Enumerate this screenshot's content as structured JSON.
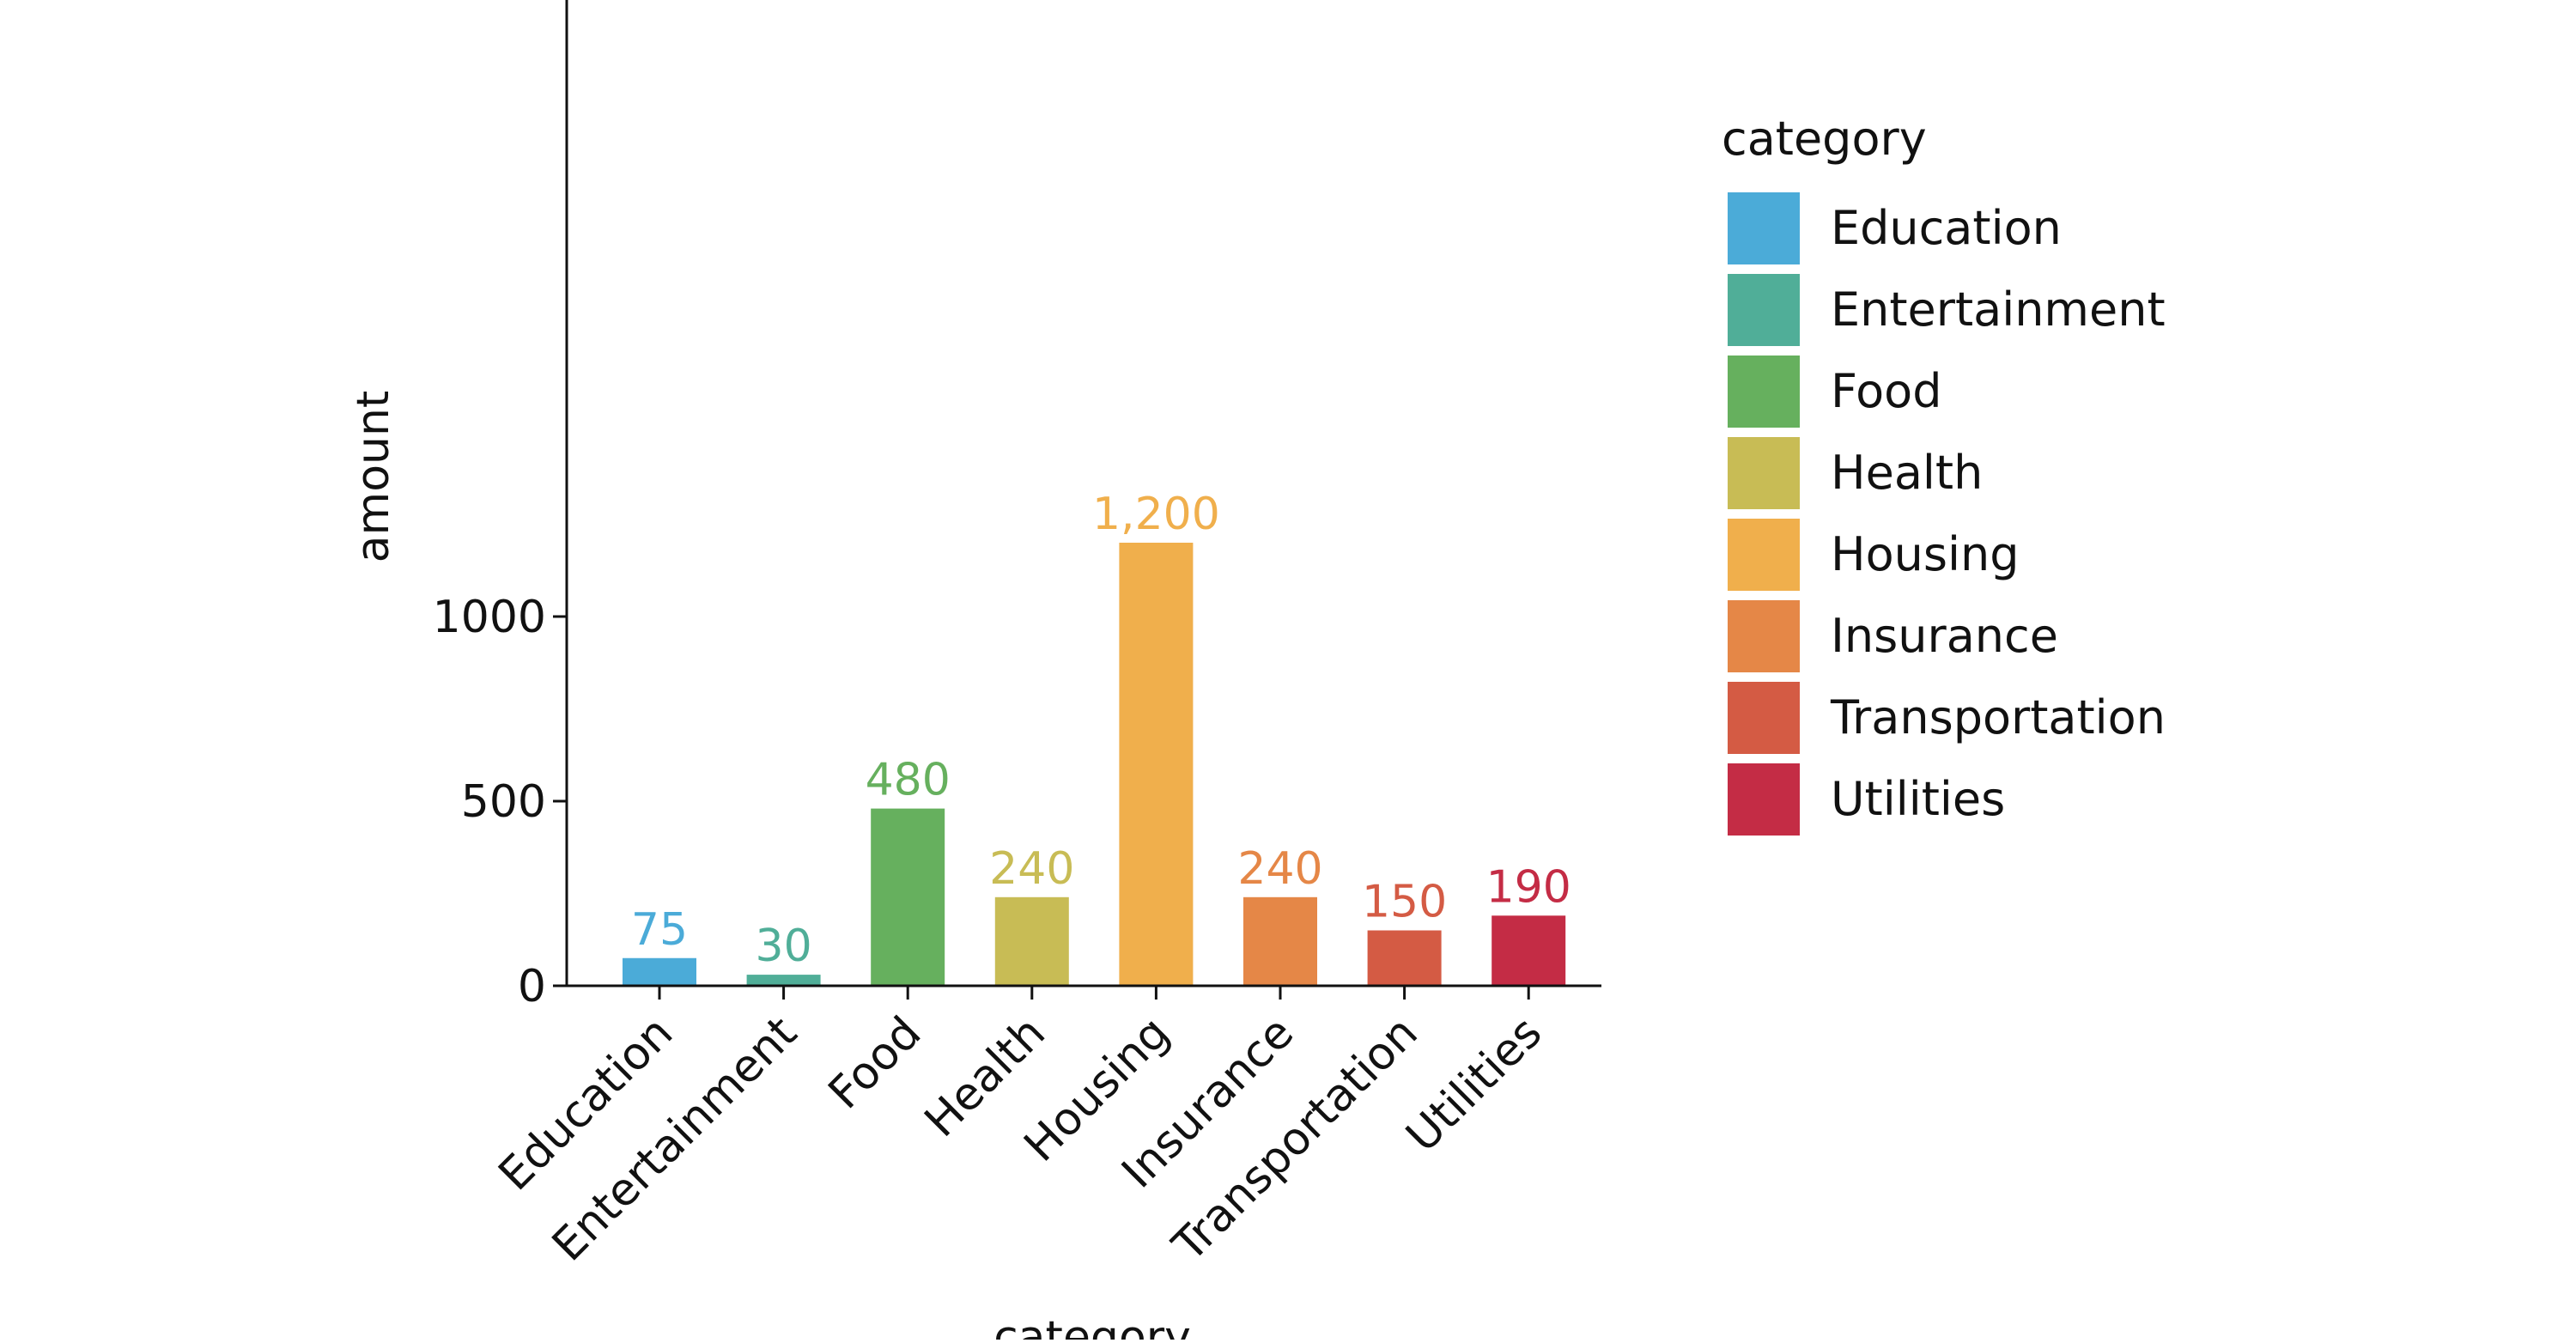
{
  "chart_data": {
    "type": "bar",
    "xlabel": "category",
    "ylabel": "amount",
    "categories": [
      "Education",
      "Entertainment",
      "Food",
      "Health",
      "Housing",
      "Insurance",
      "Transportation",
      "Utilities"
    ],
    "values": [
      75,
      30,
      480,
      240,
      1200,
      240,
      150,
      190
    ],
    "value_labels": [
      "75",
      "30",
      "480",
      "240",
      "1,200",
      "240",
      "150",
      "190"
    ],
    "colors": [
      "#4BABD8",
      "#50AE98",
      "#66B05E",
      "#C8BC55",
      "#F0AF4C",
      "#E58747",
      "#D45B44",
      "#C42C45"
    ],
    "ylim": [
      0,
      1330
    ],
    "yticks": [
      0,
      500,
      1000
    ],
    "ytick_labels": [
      "0",
      "500",
      "1000"
    ],
    "grid": false,
    "legend": {
      "title": "category",
      "position": "right",
      "entries": [
        "Education",
        "Entertainment",
        "Food",
        "Health",
        "Housing",
        "Insurance",
        "Transportation",
        "Utilities"
      ]
    }
  }
}
